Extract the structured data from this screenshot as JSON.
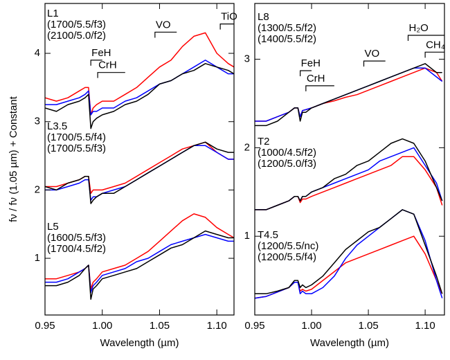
{
  "chart_data": [
    {
      "type": "line",
      "xlabel": "Wavelength (µm)",
      "ylabel": "fν / fν (1.05 µm) + Constant",
      "xlim": [
        0.95,
        1.115
      ],
      "ylim": [
        0.17,
        4.73
      ],
      "xticks": [
        0.95,
        {
          "value": 1.0,
          "label": "1.00"
        },
        1.05,
        {
          "value": 1.1,
          "label": "1.10"
        }
      ],
      "yticks": [
        1,
        2,
        3,
        4
      ],
      "x": [
        0.95,
        0.96,
        0.97,
        0.98,
        0.985,
        0.988,
        0.99,
        0.992,
        0.995,
        1.0,
        1.01,
        1.02,
        1.03,
        1.04,
        1.05,
        1.06,
        1.07,
        1.08,
        1.09,
        1.1,
        1.11,
        1.115
      ],
      "groups": [
        {
          "label": "L1",
          "series": [
            {
              "color": "#000000",
              "values": [
                3.2,
                3.15,
                3.25,
                3.3,
                3.35,
                3.4,
                2.9,
                3.0,
                3.05,
                3.1,
                3.15,
                3.25,
                3.3,
                3.4,
                3.55,
                3.6,
                3.7,
                3.75,
                3.85,
                3.8,
                3.75,
                3.7
              ]
            },
            {
              "name": "(1700/5.5/f3)",
              "color": "#0000ff",
              "values": [
                3.25,
                3.25,
                3.3,
                3.35,
                3.4,
                3.45,
                3.1,
                3.15,
                3.15,
                3.2,
                3.2,
                3.3,
                3.35,
                3.45,
                3.55,
                3.6,
                3.7,
                3.8,
                3.9,
                3.8,
                3.7,
                3.7
              ]
            },
            {
              "name": "(2100/5.0/f2)",
              "color": "#ff0000",
              "values": [
                3.35,
                3.3,
                3.35,
                3.45,
                3.5,
                3.5,
                3.1,
                3.2,
                3.25,
                3.3,
                3.3,
                3.4,
                3.5,
                3.65,
                3.8,
                3.9,
                4.1,
                4.25,
                4.3,
                4.0,
                3.85,
                3.8
              ]
            }
          ]
        },
        {
          "label": "L3.5",
          "series": [
            {
              "color": "#000000",
              "values": [
                2.05,
                2.0,
                2.1,
                2.15,
                2.2,
                2.2,
                1.8,
                1.85,
                1.9,
                1.95,
                1.95,
                2.05,
                2.15,
                2.25,
                2.35,
                2.45,
                2.55,
                2.65,
                2.7,
                2.6,
                2.55,
                2.55
              ]
            },
            {
              "name": "(1700/5.5/f4)",
              "color": "#0000ff",
              "values": [
                2.0,
                2.0,
                2.05,
                2.1,
                2.15,
                2.15,
                1.85,
                1.9,
                1.9,
                1.95,
                2.0,
                2.05,
                2.15,
                2.25,
                2.35,
                2.45,
                2.55,
                2.65,
                2.65,
                2.55,
                2.45,
                2.45
              ]
            },
            {
              "name": "(1700/5.5/f3)",
              "color": "#ff0000",
              "values": [
                2.05,
                2.05,
                2.1,
                2.15,
                2.2,
                2.2,
                1.95,
                2.0,
                2.0,
                2.0,
                2.05,
                2.1,
                2.2,
                2.3,
                2.4,
                2.5,
                2.6,
                2.65,
                2.7,
                2.55,
                2.45,
                2.45
              ]
            }
          ]
        },
        {
          "label": "L5",
          "series": [
            {
              "color": "#000000",
              "values": [
                0.6,
                0.6,
                0.65,
                0.75,
                0.85,
                0.9,
                0.4,
                0.55,
                0.6,
                0.7,
                0.75,
                0.8,
                0.85,
                0.95,
                1.05,
                1.15,
                1.2,
                1.3,
                1.4,
                1.35,
                1.3,
                1.3
              ]
            },
            {
              "name": "(1600/5.5/f3)",
              "color": "#0000ff",
              "values": [
                0.65,
                0.65,
                0.7,
                0.8,
                0.85,
                0.9,
                0.5,
                0.6,
                0.65,
                0.75,
                0.8,
                0.85,
                0.95,
                1.0,
                1.1,
                1.2,
                1.25,
                1.3,
                1.35,
                1.3,
                1.25,
                1.25
              ]
            },
            {
              "name": "(1700/4.5/f2)",
              "color": "#ff0000",
              "values": [
                0.7,
                0.7,
                0.75,
                0.8,
                0.85,
                0.9,
                0.55,
                0.65,
                0.7,
                0.8,
                0.85,
                0.9,
                1.0,
                1.1,
                1.25,
                1.4,
                1.55,
                1.65,
                1.6,
                1.45,
                1.35,
                1.3
              ]
            }
          ]
        }
      ],
      "features": [
        {
          "label": "FeH",
          "x": [
            0.99,
            1.0
          ],
          "y": 3.9
        },
        {
          "label": "CrH",
          "x": [
            0.996,
            1.02
          ],
          "y": 3.72
        },
        {
          "label": "VO",
          "x": [
            1.046,
            1.065
          ],
          "y": 4.31
        },
        {
          "label": "TiO",
          "x": [
            1.103,
            1.115
          ],
          "y": 4.43
        }
      ]
    },
    {
      "type": "line",
      "xlabel": "Wavelength (µm)",
      "xlim": [
        0.95,
        1.117
      ],
      "ylim": [
        0.11,
        3.63
      ],
      "xticks": [
        0.95,
        {
          "value": 1.0,
          "label": "1.00"
        },
        1.05,
        {
          "value": 1.1,
          "label": "1.10"
        }
      ],
      "yticks": [
        1,
        2,
        3
      ],
      "x": [
        0.95,
        0.96,
        0.97,
        0.98,
        0.985,
        0.988,
        0.99,
        0.992,
        0.995,
        1.0,
        1.01,
        1.02,
        1.03,
        1.04,
        1.05,
        1.06,
        1.07,
        1.08,
        1.09,
        1.1,
        1.11,
        1.115
      ],
      "groups": [
        {
          "label": "L8",
          "series": [
            {
              "color": "#000000",
              "values": [
                2.25,
                2.25,
                2.3,
                2.4,
                2.45,
                2.45,
                2.3,
                2.4,
                2.4,
                2.45,
                2.5,
                2.55,
                2.6,
                2.65,
                2.7,
                2.75,
                2.8,
                2.85,
                2.9,
                2.95,
                2.85,
                2.85
              ]
            },
            {
              "name": "(1300/5.5/f2)",
              "color": "#0000ff",
              "values": [
                2.3,
                2.3,
                2.35,
                2.4,
                2.45,
                2.45,
                2.35,
                2.42,
                2.43,
                2.45,
                2.5,
                2.55,
                2.6,
                2.65,
                2.7,
                2.75,
                2.8,
                2.85,
                2.9,
                2.9,
                2.8,
                2.75
              ]
            },
            {
              "name": "(1400/5.5/f2)",
              "color": "#ff0000",
              "values": [
                2.3,
                2.3,
                2.35,
                2.4,
                2.45,
                2.45,
                2.35,
                2.42,
                2.43,
                2.45,
                2.5,
                2.53,
                2.57,
                2.6,
                2.65,
                2.7,
                2.75,
                2.8,
                2.85,
                2.9,
                2.85,
                2.75
              ]
            }
          ]
        },
        {
          "label": "T2",
          "series": [
            {
              "color": "#000000",
              "values": [
                1.3,
                1.3,
                1.35,
                1.4,
                1.45,
                1.45,
                1.4,
                1.45,
                1.45,
                1.5,
                1.55,
                1.65,
                1.7,
                1.8,
                1.85,
                1.95,
                2.05,
                2.1,
                2.05,
                1.85,
                1.55,
                1.4
              ]
            },
            {
              "name": "(1000/4.5/f2)",
              "color": "#0000ff",
              "values": [
                1.3,
                1.3,
                1.35,
                1.4,
                1.45,
                1.45,
                1.4,
                1.45,
                1.45,
                1.5,
                1.55,
                1.6,
                1.65,
                1.7,
                1.75,
                1.85,
                1.9,
                1.95,
                2.0,
                1.8,
                1.6,
                1.4
              ]
            },
            {
              "name": "(1200/5.0/f3)",
              "color": "#ff0000",
              "values": [
                1.3,
                1.3,
                1.35,
                1.4,
                1.45,
                1.45,
                1.38,
                1.42,
                1.42,
                1.45,
                1.5,
                1.55,
                1.6,
                1.65,
                1.7,
                1.75,
                1.8,
                1.9,
                1.9,
                1.75,
                1.55,
                1.35
              ]
            }
          ]
        },
        {
          "label": "T4.5",
          "series": [
            {
              "color": "#000000",
              "values": [
                0.35,
                0.35,
                0.38,
                0.42,
                0.5,
                0.5,
                0.42,
                0.45,
                0.42,
                0.45,
                0.55,
                0.7,
                0.85,
                0.95,
                1.05,
                1.1,
                1.2,
                1.3,
                1.25,
                0.9,
                0.55,
                0.35
              ]
            },
            {
              "name": "(1200/5.5/nc)",
              "color": "#0000ff",
              "values": [
                0.3,
                0.32,
                0.37,
                0.42,
                0.48,
                0.48,
                0.35,
                0.38,
                0.35,
                0.35,
                0.42,
                0.55,
                0.75,
                0.9,
                1.0,
                1.1,
                1.2,
                1.3,
                1.25,
                0.95,
                0.5,
                0.3
              ]
            },
            {
              "name": "(1200/5.5/f4)",
              "color": "#ff0000",
              "values": [
                0.3,
                0.32,
                0.37,
                0.42,
                0.48,
                0.48,
                0.38,
                0.4,
                0.38,
                0.4,
                0.5,
                0.6,
                0.7,
                0.75,
                0.8,
                0.85,
                0.9,
                0.95,
                1.0,
                0.8,
                0.5,
                0.35
              ]
            }
          ]
        }
      ],
      "features": [
        {
          "label": "FeH",
          "x": [
            0.99,
            1.0
          ],
          "y": 2.87
        },
        {
          "label": "CrH",
          "x": [
            0.995,
            1.02
          ],
          "y": 2.7
        },
        {
          "label": "VO",
          "x": [
            1.046,
            1.065
          ],
          "y": 2.98
        },
        {
          "label": "H₂O",
          "x": [
            1.085,
            1.117
          ],
          "y": 3.27
        },
        {
          "label": "CH₄",
          "x": [
            1.1,
            1.117
          ],
          "y": 3.08
        }
      ]
    }
  ]
}
